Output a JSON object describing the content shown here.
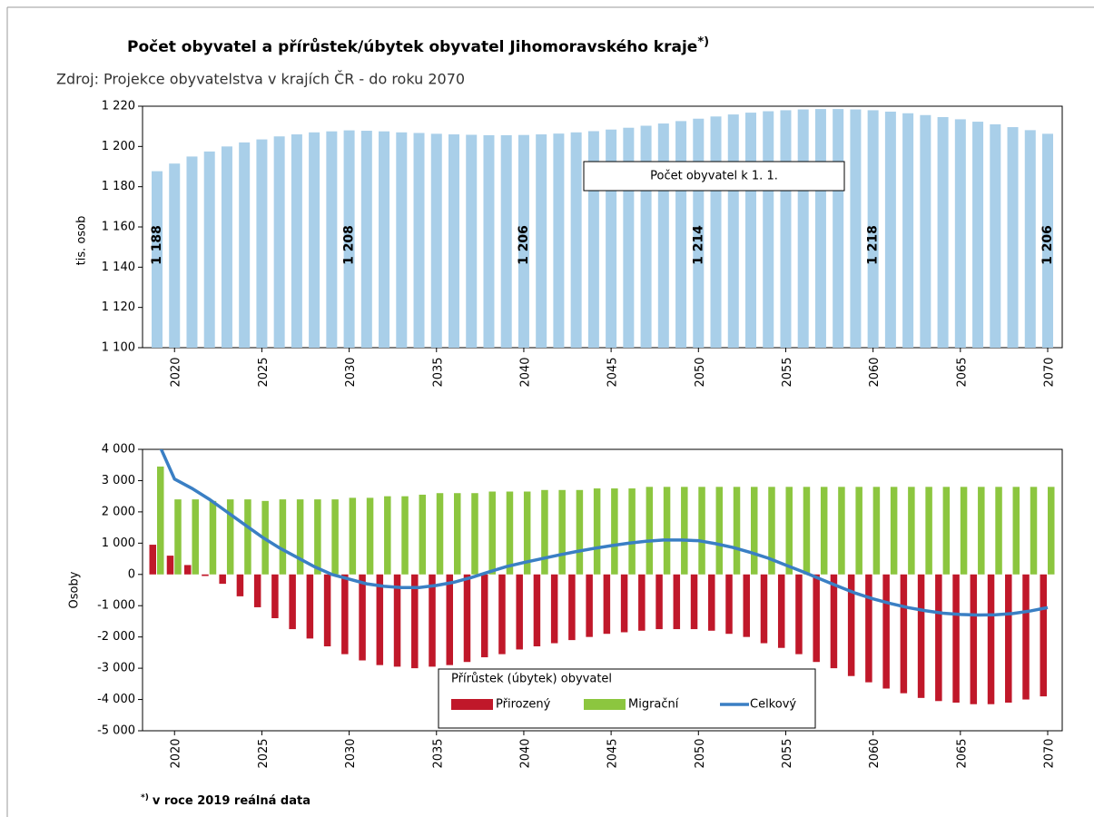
{
  "title": "Počet obyvatel a přírůstek/úbytek obyvatel Jihomoravského kraje",
  "title_mark": "*)",
  "source": "Zdroj: Projekce obyvatelstva v krajích ČR - do roku 2070",
  "footnote_mark": "*)",
  "footnote": "v roce 2019 reálná data",
  "chart_data": [
    {
      "type": "bar",
      "y_label": "tis. osob",
      "x": [
        2019,
        2020,
        2021,
        2022,
        2023,
        2024,
        2025,
        2026,
        2027,
        2028,
        2029,
        2030,
        2031,
        2032,
        2033,
        2034,
        2035,
        2036,
        2037,
        2038,
        2039,
        2040,
        2041,
        2042,
        2043,
        2044,
        2045,
        2046,
        2047,
        2048,
        2049,
        2050,
        2051,
        2052,
        2053,
        2054,
        2055,
        2056,
        2057,
        2058,
        2059,
        2060,
        2061,
        2062,
        2063,
        2064,
        2065,
        2066,
        2067,
        2068,
        2069,
        2070
      ],
      "xticks": [
        2020,
        2025,
        2030,
        2035,
        2040,
        2045,
        2050,
        2055,
        2060,
        2065,
        2070
      ],
      "ylim": [
        1100,
        1220
      ],
      "yticks": [
        {
          "value": 1100,
          "label": "1 100"
        },
        {
          "value": 1120,
          "label": "1 120"
        },
        {
          "value": 1140,
          "label": "1 140"
        },
        {
          "value": 1160,
          "label": "1 160"
        },
        {
          "value": 1180,
          "label": "1 180"
        },
        {
          "value": 1200,
          "label": "1 200"
        },
        {
          "value": 1220,
          "label": "1 220"
        }
      ],
      "series": [
        {
          "name": "Počet obyvatel k 1. 1.",
          "color": "#a9cfe9",
          "values": [
            1187.7,
            1191.5,
            1195,
            1197.5,
            1200,
            1202,
            1203.5,
            1205,
            1206,
            1207,
            1207.5,
            1208,
            1207.8,
            1207.5,
            1207,
            1206.7,
            1206.3,
            1206,
            1205.8,
            1205.6,
            1205.6,
            1205.7,
            1206,
            1206.4,
            1207,
            1207.6,
            1208.4,
            1209.3,
            1210.3,
            1211.4,
            1212.6,
            1213.8,
            1214.9,
            1215.9,
            1216.8,
            1217.5,
            1218,
            1218.4,
            1218.6,
            1218.6,
            1218.4,
            1218,
            1217.3,
            1216.5,
            1215.6,
            1214.6,
            1213.5,
            1212.3,
            1211,
            1209.6,
            1208.1,
            1206.3
          ],
          "value_labels": [
            "1 188",
            null,
            null,
            null,
            null,
            null,
            null,
            null,
            null,
            null,
            null,
            "1 208",
            null,
            null,
            null,
            null,
            null,
            null,
            null,
            null,
            null,
            "1 206",
            null,
            null,
            null,
            null,
            null,
            null,
            null,
            null,
            null,
            "1 214",
            null,
            null,
            null,
            null,
            null,
            null,
            null,
            null,
            null,
            "1 218",
            null,
            null,
            null,
            null,
            null,
            null,
            null,
            null,
            null,
            "1 206"
          ]
        }
      ]
    },
    {
      "type": "bar",
      "y_label": "Osoby",
      "legend_title": "Přírůstek (úbytek) obyvatel",
      "x": [
        2019,
        2020,
        2021,
        2022,
        2023,
        2024,
        2025,
        2026,
        2027,
        2028,
        2029,
        2030,
        2031,
        2032,
        2033,
        2034,
        2035,
        2036,
        2037,
        2038,
        2039,
        2040,
        2041,
        2042,
        2043,
        2044,
        2045,
        2046,
        2047,
        2048,
        2049,
        2050,
        2051,
        2052,
        2053,
        2054,
        2055,
        2056,
        2057,
        2058,
        2059,
        2060,
        2061,
        2062,
        2063,
        2064,
        2065,
        2066,
        2067,
        2068,
        2069,
        2070
      ],
      "xticks": [
        2020,
        2025,
        2030,
        2035,
        2040,
        2045,
        2050,
        2055,
        2060,
        2065,
        2070
      ],
      "ylim": [
        -5000,
        4000
      ],
      "yticks": [
        {
          "value": -5000,
          "label": "-5 000"
        },
        {
          "value": -4000,
          "label": "-4 000"
        },
        {
          "value": -3000,
          "label": "-3 000"
        },
        {
          "value": -2000,
          "label": "-2 000"
        },
        {
          "value": -1000,
          "label": "-1 000"
        },
        0,
        {
          "value": 1000,
          "label": "1 000"
        },
        {
          "value": 2000,
          "label": "2 000"
        },
        {
          "value": 3000,
          "label": "3 000"
        },
        {
          "value": 4000,
          "label": "4 000"
        }
      ],
      "series": [
        {
          "name": "Přirozený",
          "type": "bar",
          "color": "#c0182a",
          "values": [
            950,
            600,
            300,
            -50,
            -300,
            -700,
            -1050,
            -1400,
            -1750,
            -2050,
            -2300,
            -2550,
            -2750,
            -2900,
            -2950,
            -3000,
            -2950,
            -2900,
            -2800,
            -2650,
            -2550,
            -2400,
            -2300,
            -2200,
            -2100,
            -2000,
            -1900,
            -1850,
            -1800,
            -1750,
            -1750,
            -1750,
            -1800,
            -1900,
            -2000,
            -2200,
            -2350,
            -2550,
            -2800,
            -3000,
            -3250,
            -3450,
            -3650,
            -3800,
            -3950,
            -4050,
            -4100,
            -4150,
            -4150,
            -4100,
            -4000,
            -3900
          ]
        },
        {
          "name": "Migrační",
          "type": "bar",
          "color": "#8cc63f",
          "values": [
            3450,
            2400,
            2400,
            2350,
            2400,
            2400,
            2350,
            2400,
            2400,
            2400,
            2400,
            2450,
            2450,
            2500,
            2500,
            2550,
            2600,
            2600,
            2600,
            2650,
            2650,
            2650,
            2700,
            2700,
            2700,
            2750,
            2750,
            2750,
            2800,
            2800,
            2800,
            2800,
            2800,
            2800,
            2800,
            2800,
            2800,
            2800,
            2800,
            2800,
            2800,
            2800,
            2800,
            2800,
            2800,
            2800,
            2800,
            2800,
            2800,
            2800,
            2800,
            2800
          ]
        },
        {
          "name": "Celkový",
          "type": "line",
          "color": "#3a7fc4",
          "values": [
            4300,
            3050,
            2750,
            2400,
            2000,
            1600,
            1200,
            850,
            550,
            250,
            0,
            -150,
            -300,
            -380,
            -420,
            -420,
            -350,
            -250,
            -100,
            80,
            250,
            380,
            500,
            620,
            730,
            830,
            920,
            1000,
            1060,
            1100,
            1100,
            1080,
            980,
            860,
            700,
            520,
            300,
            80,
            -150,
            -380,
            -600,
            -780,
            -930,
            -1060,
            -1160,
            -1240,
            -1280,
            -1300,
            -1290,
            -1250,
            -1170,
            -1060
          ]
        }
      ]
    }
  ]
}
